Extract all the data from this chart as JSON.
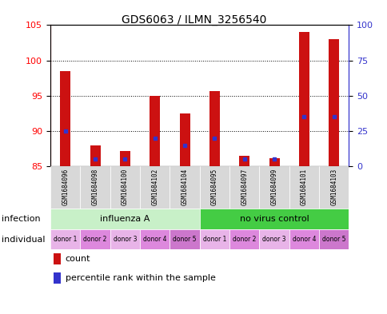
{
  "title": "GDS6063 / ILMN_3256540",
  "samples": [
    "GSM1684096",
    "GSM1684098",
    "GSM1684100",
    "GSM1684102",
    "GSM1684104",
    "GSM1684095",
    "GSM1684097",
    "GSM1684099",
    "GSM1684101",
    "GSM1684103"
  ],
  "count_values": [
    98.5,
    88.0,
    87.2,
    95.0,
    92.5,
    95.7,
    86.5,
    86.2,
    104.0,
    103.0
  ],
  "percentile_values": [
    25,
    5,
    5,
    20,
    15,
    20,
    5,
    5,
    35,
    35
  ],
  "baseline": 85,
  "ylim": [
    85,
    105
  ],
  "ylim_right": [
    0,
    100
  ],
  "yticks_left": [
    85,
    90,
    95,
    100,
    105
  ],
  "yticks_right": [
    0,
    25,
    50,
    75,
    100
  ],
  "bar_color": "#cc1111",
  "percentile_color": "#3333cc",
  "infection_groups": [
    {
      "label": "influenza A",
      "start": 0,
      "end": 5,
      "color": "#c8f0c8"
    },
    {
      "label": "no virus control",
      "start": 5,
      "end": 10,
      "color": "#44cc44"
    }
  ],
  "individual_labels": [
    "donor 1",
    "donor 2",
    "donor 3",
    "donor 4",
    "donor 5",
    "donor 1",
    "donor 2",
    "donor 3",
    "donor 4",
    "donor 5"
  ],
  "individual_colors": [
    "#e8b4e8",
    "#dd88dd",
    "#e8b4e8",
    "#dd88dd",
    "#cc77cc",
    "#e8b4e8",
    "#dd88dd",
    "#e8b4e8",
    "#dd88dd",
    "#cc77cc"
  ],
  "legend_count_label": "count",
  "legend_percentile_label": "percentile rank within the sample",
  "infection_label": "infection",
  "individual_label": "individual",
  "sample_box_color": "#d8d8d8",
  "bar_width": 0.35
}
